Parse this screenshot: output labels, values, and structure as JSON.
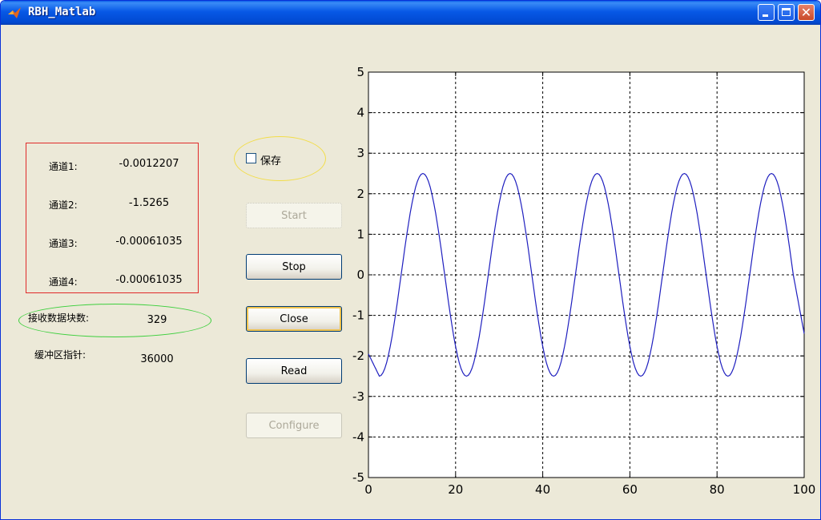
{
  "window": {
    "title": "RBH_Matlab",
    "controls": {
      "minimize": "minimize-icon",
      "maximize": "maximize-icon",
      "close": "close-icon"
    },
    "accent": "#0a5ee8"
  },
  "channels": [
    {
      "label": "通道1:",
      "value": "-0.0012207"
    },
    {
      "label": "通道2:",
      "value": "-1.5265"
    },
    {
      "label": "通道3:",
      "value": "-0.00061035"
    },
    {
      "label": "通道4:",
      "value": "-0.00061035"
    }
  ],
  "received": {
    "label": "接收数据块数:",
    "value": "329"
  },
  "buffer": {
    "label": "缓冲区指针:",
    "value": "36000"
  },
  "save": {
    "label": "保存",
    "checked": false
  },
  "buttons": {
    "start": "Start",
    "stop": "Stop",
    "close": "Close",
    "read": "Read",
    "configure": "Configure"
  },
  "chart_data": {
    "type": "line",
    "title": "",
    "xlabel": "",
    "ylabel": "",
    "xlim": [
      0,
      100
    ],
    "ylim": [
      -5,
      5
    ],
    "xticks": [
      "0",
      "20",
      "40",
      "60",
      "80",
      "100"
    ],
    "yticks": [
      "-5",
      "-4",
      "-3",
      "-2",
      "-1",
      "0",
      "1",
      "2",
      "3",
      "4",
      "5"
    ],
    "grid": true,
    "series": [
      {
        "color": "#1f1fbf",
        "x": [
          0,
          2.5,
          7.5,
          12.5,
          17.5,
          22.5,
          27.5,
          32.5,
          37.5,
          42.5,
          47.5,
          52.5,
          57.5,
          62.5,
          67.5,
          72.5,
          77.5,
          82.5,
          87.5,
          92.5,
          97.5,
          100
        ],
        "y": [
          -1.95,
          -2.5,
          0,
          2.5,
          0,
          -2.5,
          0,
          2.5,
          0,
          -2.5,
          0,
          2.5,
          0,
          -2.5,
          0,
          2.5,
          0,
          -2.5,
          0,
          2.5,
          0,
          -1.45
        ]
      }
    ]
  }
}
